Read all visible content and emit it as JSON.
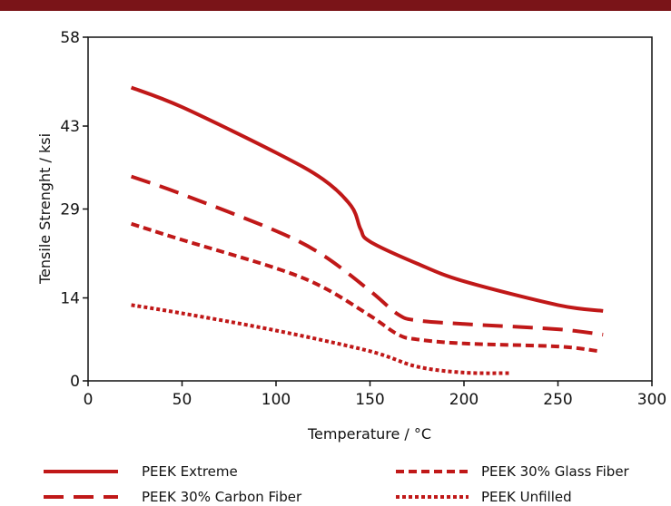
{
  "colors": {
    "top_bar": "#7a1418",
    "series": "#c01818",
    "axis": "#111111"
  },
  "chart_data": {
    "type": "line",
    "title": "",
    "xlabel": "Temperature / °C",
    "ylabel": "Tensile Strenght / ksi",
    "xlim": [
      0,
      300
    ],
    "ylim": [
      0,
      58
    ],
    "xticks": [
      0,
      50,
      100,
      150,
      200,
      250,
      300
    ],
    "yticks": [
      0,
      14,
      29,
      43,
      58
    ],
    "grid": false,
    "legend_position": "bottom",
    "series": [
      {
        "name": "PEEK Extreme",
        "style": "solid",
        "x": [
          23,
          50,
          100,
          125,
          140,
          145,
          150,
          175,
          200,
          250,
          274
        ],
        "y": [
          49.5,
          46.2,
          38.5,
          34.0,
          29.5,
          25.6,
          23.5,
          19.8,
          16.8,
          12.8,
          11.8
        ]
      },
      {
        "name": "PEEK 30% Carbon Fiber",
        "style": "dashed",
        "x": [
          23,
          50,
          100,
          125,
          150,
          165,
          175,
          200,
          250,
          274
        ],
        "y": [
          34.5,
          31.5,
          25.3,
          21.2,
          15.2,
          11.2,
          10.2,
          9.6,
          8.7,
          7.8
        ]
      },
      {
        "name": "PEEK 30% Glass Fiber",
        "style": "short-dashed",
        "x": [
          23,
          50,
          100,
          125,
          150,
          165,
          175,
          200,
          250,
          272
        ],
        "y": [
          26.5,
          23.8,
          19.0,
          15.8,
          11.0,
          7.8,
          7.0,
          6.3,
          5.8,
          5.0
        ]
      },
      {
        "name": "PEEK Unfilled",
        "style": "dotted",
        "x": [
          23,
          50,
          100,
          150,
          175,
          200,
          225
        ],
        "y": [
          12.8,
          11.4,
          8.5,
          5.0,
          2.4,
          1.4,
          1.3
        ]
      }
    ]
  }
}
